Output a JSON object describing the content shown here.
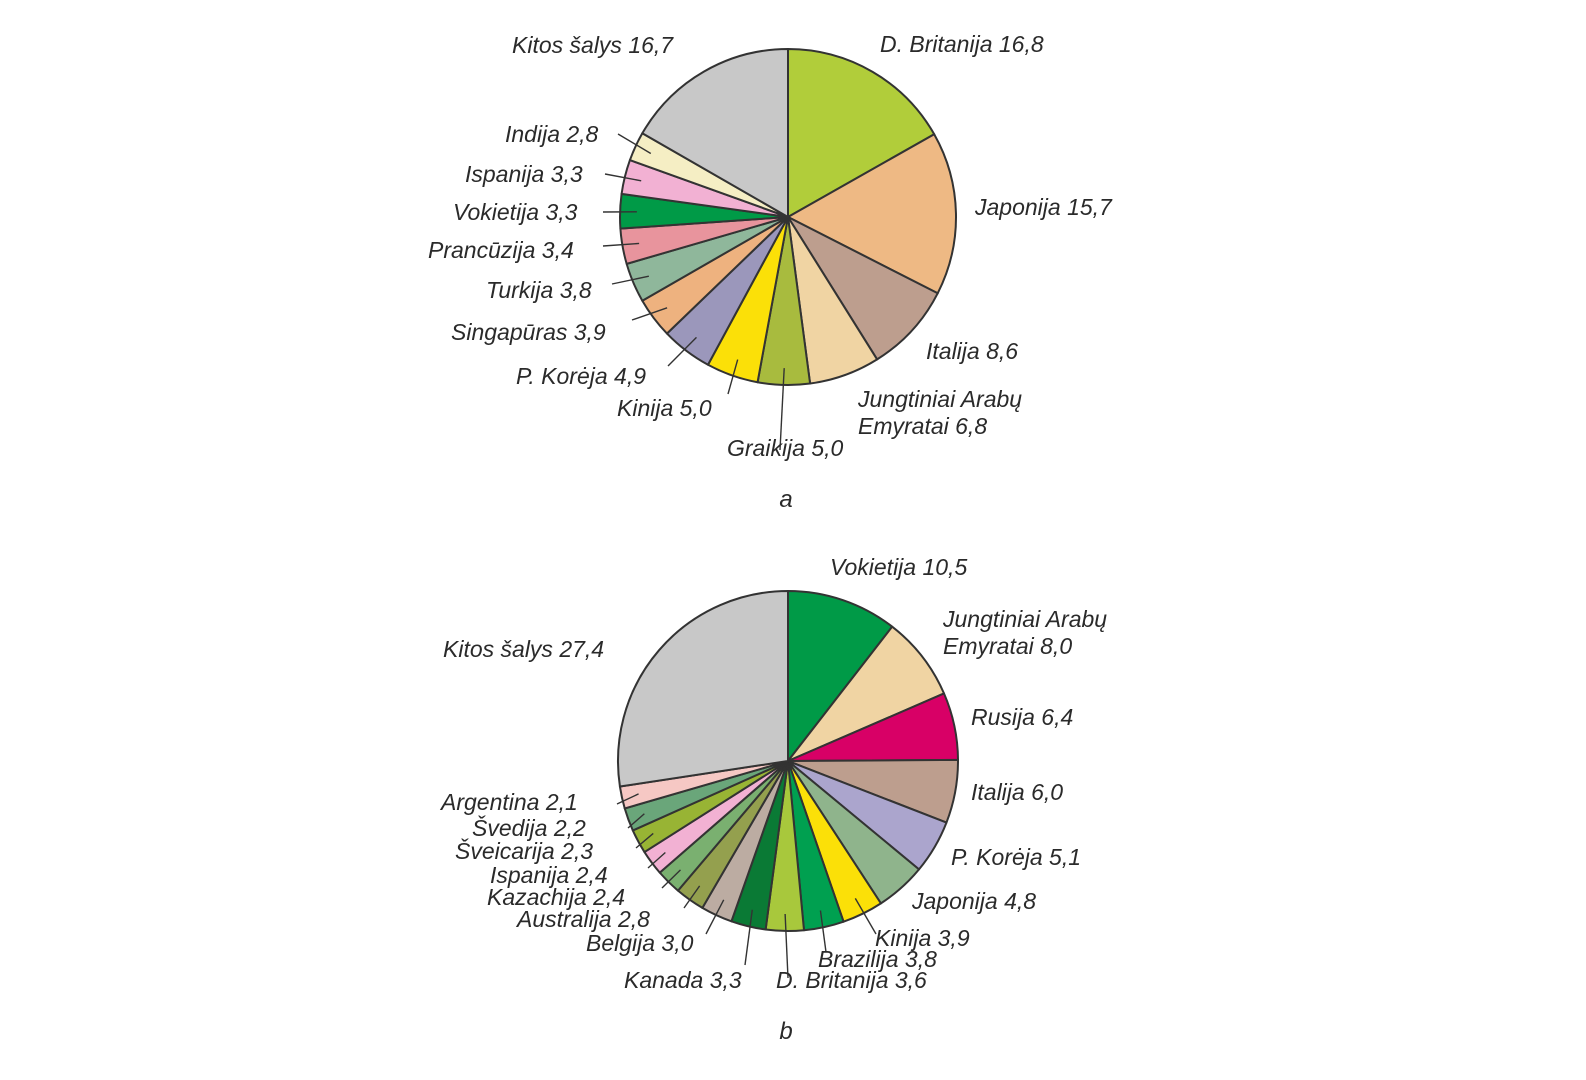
{
  "chart_data": [
    {
      "type": "pie",
      "caption": "a",
      "slices": [
        {
          "label": "D. Britanija 16,8",
          "value": 16.8,
          "color": "#b1cd3a"
        },
        {
          "label": "Japonija 15,7",
          "value": 15.7,
          "color": "#eeb984"
        },
        {
          "label": "Italija 8,6",
          "value": 8.6,
          "color": "#bd9e8e"
        },
        {
          "label": "Jungtiniai Arabų Emyratai 6,8",
          "label_lines": [
            "Jungtiniai Arabų",
            "Emyratai 6,8"
          ],
          "value": 6.8,
          "color": "#f0d4a3"
        },
        {
          "label": "Graikija 5,0",
          "value": 5.0,
          "color": "#a8bb3e"
        },
        {
          "label": "Kinija 5,0",
          "value": 5.0,
          "color": "#fbe008"
        },
        {
          "label": "P. Korėja 4,9",
          "value": 4.9,
          "color": "#9b97bb"
        },
        {
          "label": "Singapūras 3,9",
          "value": 3.9,
          "color": "#eeb27f"
        },
        {
          "label": "Turkija 3,8",
          "value": 3.8,
          "color": "#8fb79b"
        },
        {
          "label": "Prancūzija 3,4",
          "value": 3.4,
          "color": "#e8949d"
        },
        {
          "label": "Vokietija 3,3",
          "value": 3.3,
          "color": "#009a47"
        },
        {
          "label": "Ispanija 3,3",
          "value": 3.3,
          "color": "#f2b1d3"
        },
        {
          "label": "Indija 2,8",
          "value": 2.8,
          "color": "#f5eec4"
        },
        {
          "label": "Kitos šalys 16,7",
          "value": 16.7,
          "color": "#c8c8c8"
        }
      ]
    },
    {
      "type": "pie",
      "caption": "b",
      "slices": [
        {
          "label": "Vokietija 10,5",
          "value": 10.5,
          "color": "#009a47"
        },
        {
          "label": "Jungtiniai Arabų Emyratai 8,0",
          "label_lines": [
            "Jungtiniai Arabų",
            "Emyratai 8,0"
          ],
          "value": 8.0,
          "color": "#f0d4a3"
        },
        {
          "label": "Rusija 6,4",
          "value": 6.4,
          "color": "#d80066"
        },
        {
          "label": "Italija 6,0",
          "value": 6.0,
          "color": "#bd9e8e"
        },
        {
          "label": "P. Korėja 5,1",
          "value": 5.1,
          "color": "#aba5cd"
        },
        {
          "label": "Japonija 4,8",
          "value": 4.8,
          "color": "#8fb48c"
        },
        {
          "label": "Kinija 3,9",
          "value": 3.9,
          "color": "#fbe008"
        },
        {
          "label": "Brazilija 3,8",
          "value": 3.8,
          "color": "#00a050"
        },
        {
          "label": "D. Britanija 3,6",
          "value": 3.6,
          "color": "#a8c83c"
        },
        {
          "label": "Kanada 3,3",
          "value": 3.3,
          "color": "#0a7a35"
        },
        {
          "label": "Belgija 3,0",
          "value": 3.0,
          "color": "#bcaca2"
        },
        {
          "label": "Australija 2,8",
          "value": 2.8,
          "color": "#94a04e"
        },
        {
          "label": "Kazachija 2,4",
          "value": 2.4,
          "color": "#7ab070"
        },
        {
          "label": "Ispanija 2,4",
          "value": 2.4,
          "color": "#f2b1d3"
        },
        {
          "label": "Šveicarija 2,3",
          "value": 2.3,
          "color": "#98b434"
        },
        {
          "label": "Švedija 2,2",
          "value": 2.2,
          "color": "#6aa67a"
        },
        {
          "label": "Argentina 2,1",
          "value": 2.1,
          "color": "#f6c8c4"
        },
        {
          "label": "Kitos šalys 27,4",
          "value": 27.4,
          "color": "#c8c8c8"
        }
      ]
    }
  ]
}
